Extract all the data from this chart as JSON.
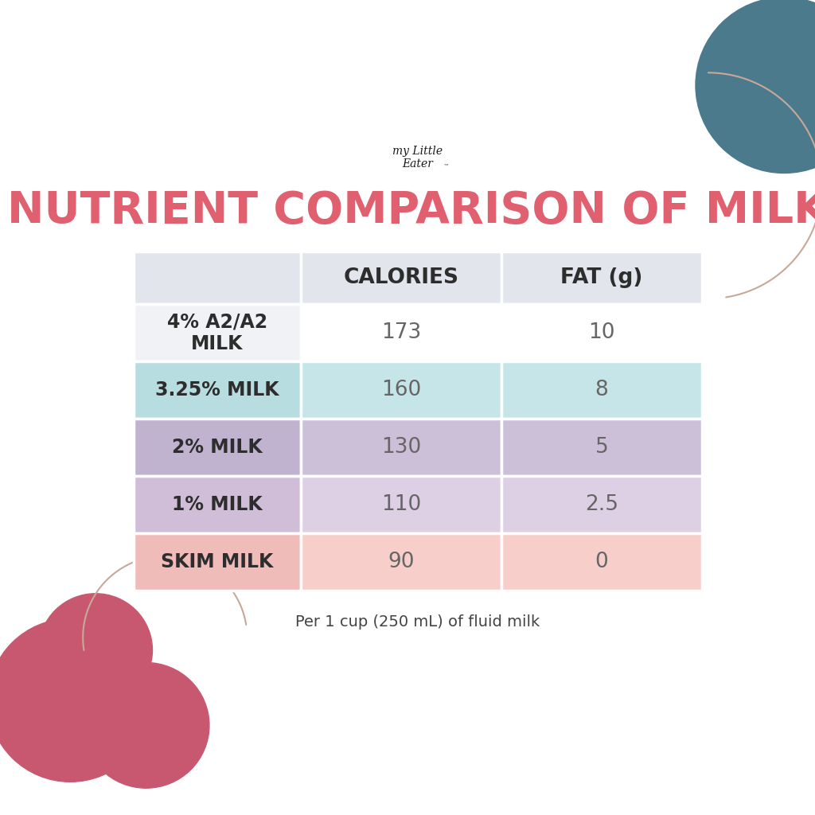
{
  "title": "NUTRIENT COMPARISON OF MILK",
  "title_color": "#E06070",
  "background_color": "#FFFFFF",
  "footnote": "Per 1 cup (250 mL) of fluid milk",
  "rows": [
    {
      "label": "4% A2/A2\nMILK",
      "calories": "173",
      "fat": "10",
      "label_bg": "#F0F2F5",
      "data_bg": "#FFFFFF"
    },
    {
      "label": "3.25% MILK",
      "calories": "160",
      "fat": "8",
      "label_bg": "#B8DDE0",
      "data_bg": "#C5E5E8"
    },
    {
      "label": "2% MILK",
      "calories": "130",
      "fat": "5",
      "label_bg": "#BFB3D0",
      "data_bg": "#CCC0D8"
    },
    {
      "label": "1% MILK",
      "calories": "110",
      "fat": "2.5",
      "label_bg": "#D0BED8",
      "data_bg": "#DDD0E4"
    },
    {
      "label": "SKIM MILK",
      "calories": "90",
      "fat": "0",
      "label_bg": "#F0BCBA",
      "data_bg": "#F8CECA"
    }
  ],
  "header_bg": "#E2E6EC",
  "header_text_color": "#2D2D2D",
  "label_text_color": "#2D2D2D",
  "data_text_color": "#666666",
  "decor_teal_color": "#4A7A8C",
  "decor_rose_color": "#C85870",
  "decor_arc_color": "#C8A898"
}
